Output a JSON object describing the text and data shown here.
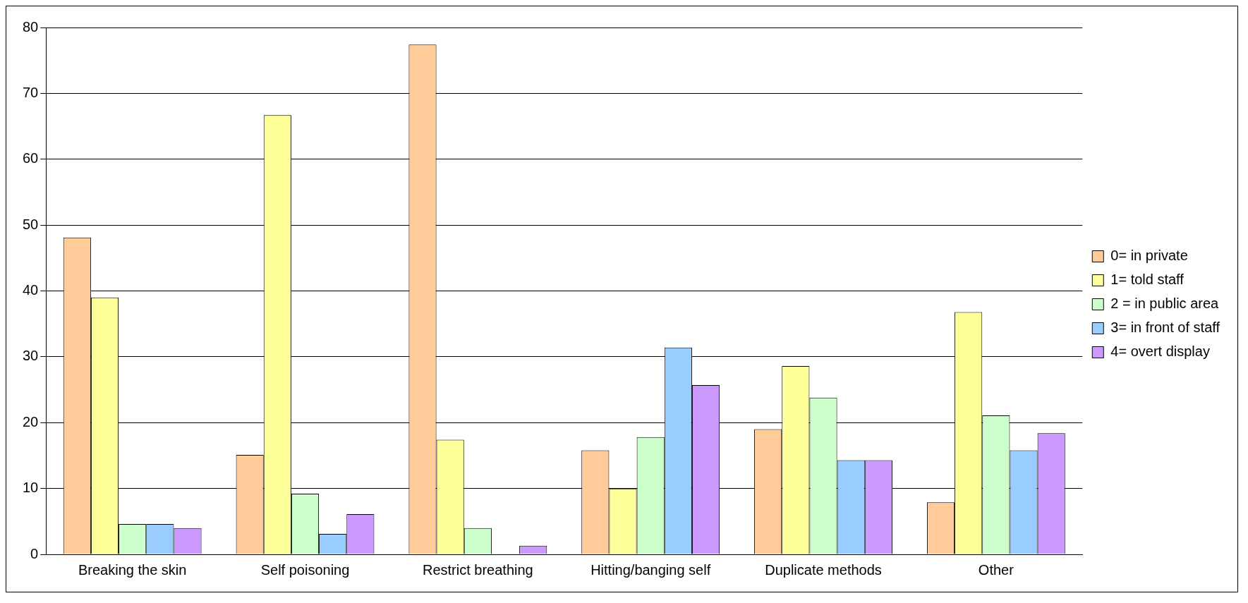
{
  "chart_data": {
    "type": "bar",
    "categories": [
      "Breaking the skin",
      "Self poisoning",
      "Restrict breathing",
      "Hitting/banging self",
      "Duplicate methods",
      "Other"
    ],
    "series": [
      {
        "name": "0= in private",
        "color": "#ffcc99",
        "values": [
          48.1,
          15.1,
          77.4,
          15.8,
          19.0,
          7.9
        ]
      },
      {
        "name": "1= told staff",
        "color": "#ffff99",
        "values": [
          39.0,
          66.7,
          17.4,
          10.0,
          28.6,
          36.8
        ]
      },
      {
        "name": "2 = in public area",
        "color": "#ccffcc",
        "values": [
          4.6,
          9.2,
          4.0,
          17.8,
          23.8,
          21.1
        ]
      },
      {
        "name": "3= in front of staff",
        "color": "#99ccff",
        "values": [
          4.6,
          3.1,
          0,
          31.4,
          14.3,
          15.8
        ]
      },
      {
        "name": "4= overt display",
        "color": "#cc99ff",
        "values": [
          4.0,
          6.1,
          1.3,
          25.7,
          14.3,
          18.4
        ]
      }
    ],
    "ylim": [
      0,
      80
    ],
    "yticks": [
      0,
      10,
      20,
      30,
      40,
      50,
      60,
      70,
      80
    ],
    "grid": "y",
    "legend": "right"
  }
}
